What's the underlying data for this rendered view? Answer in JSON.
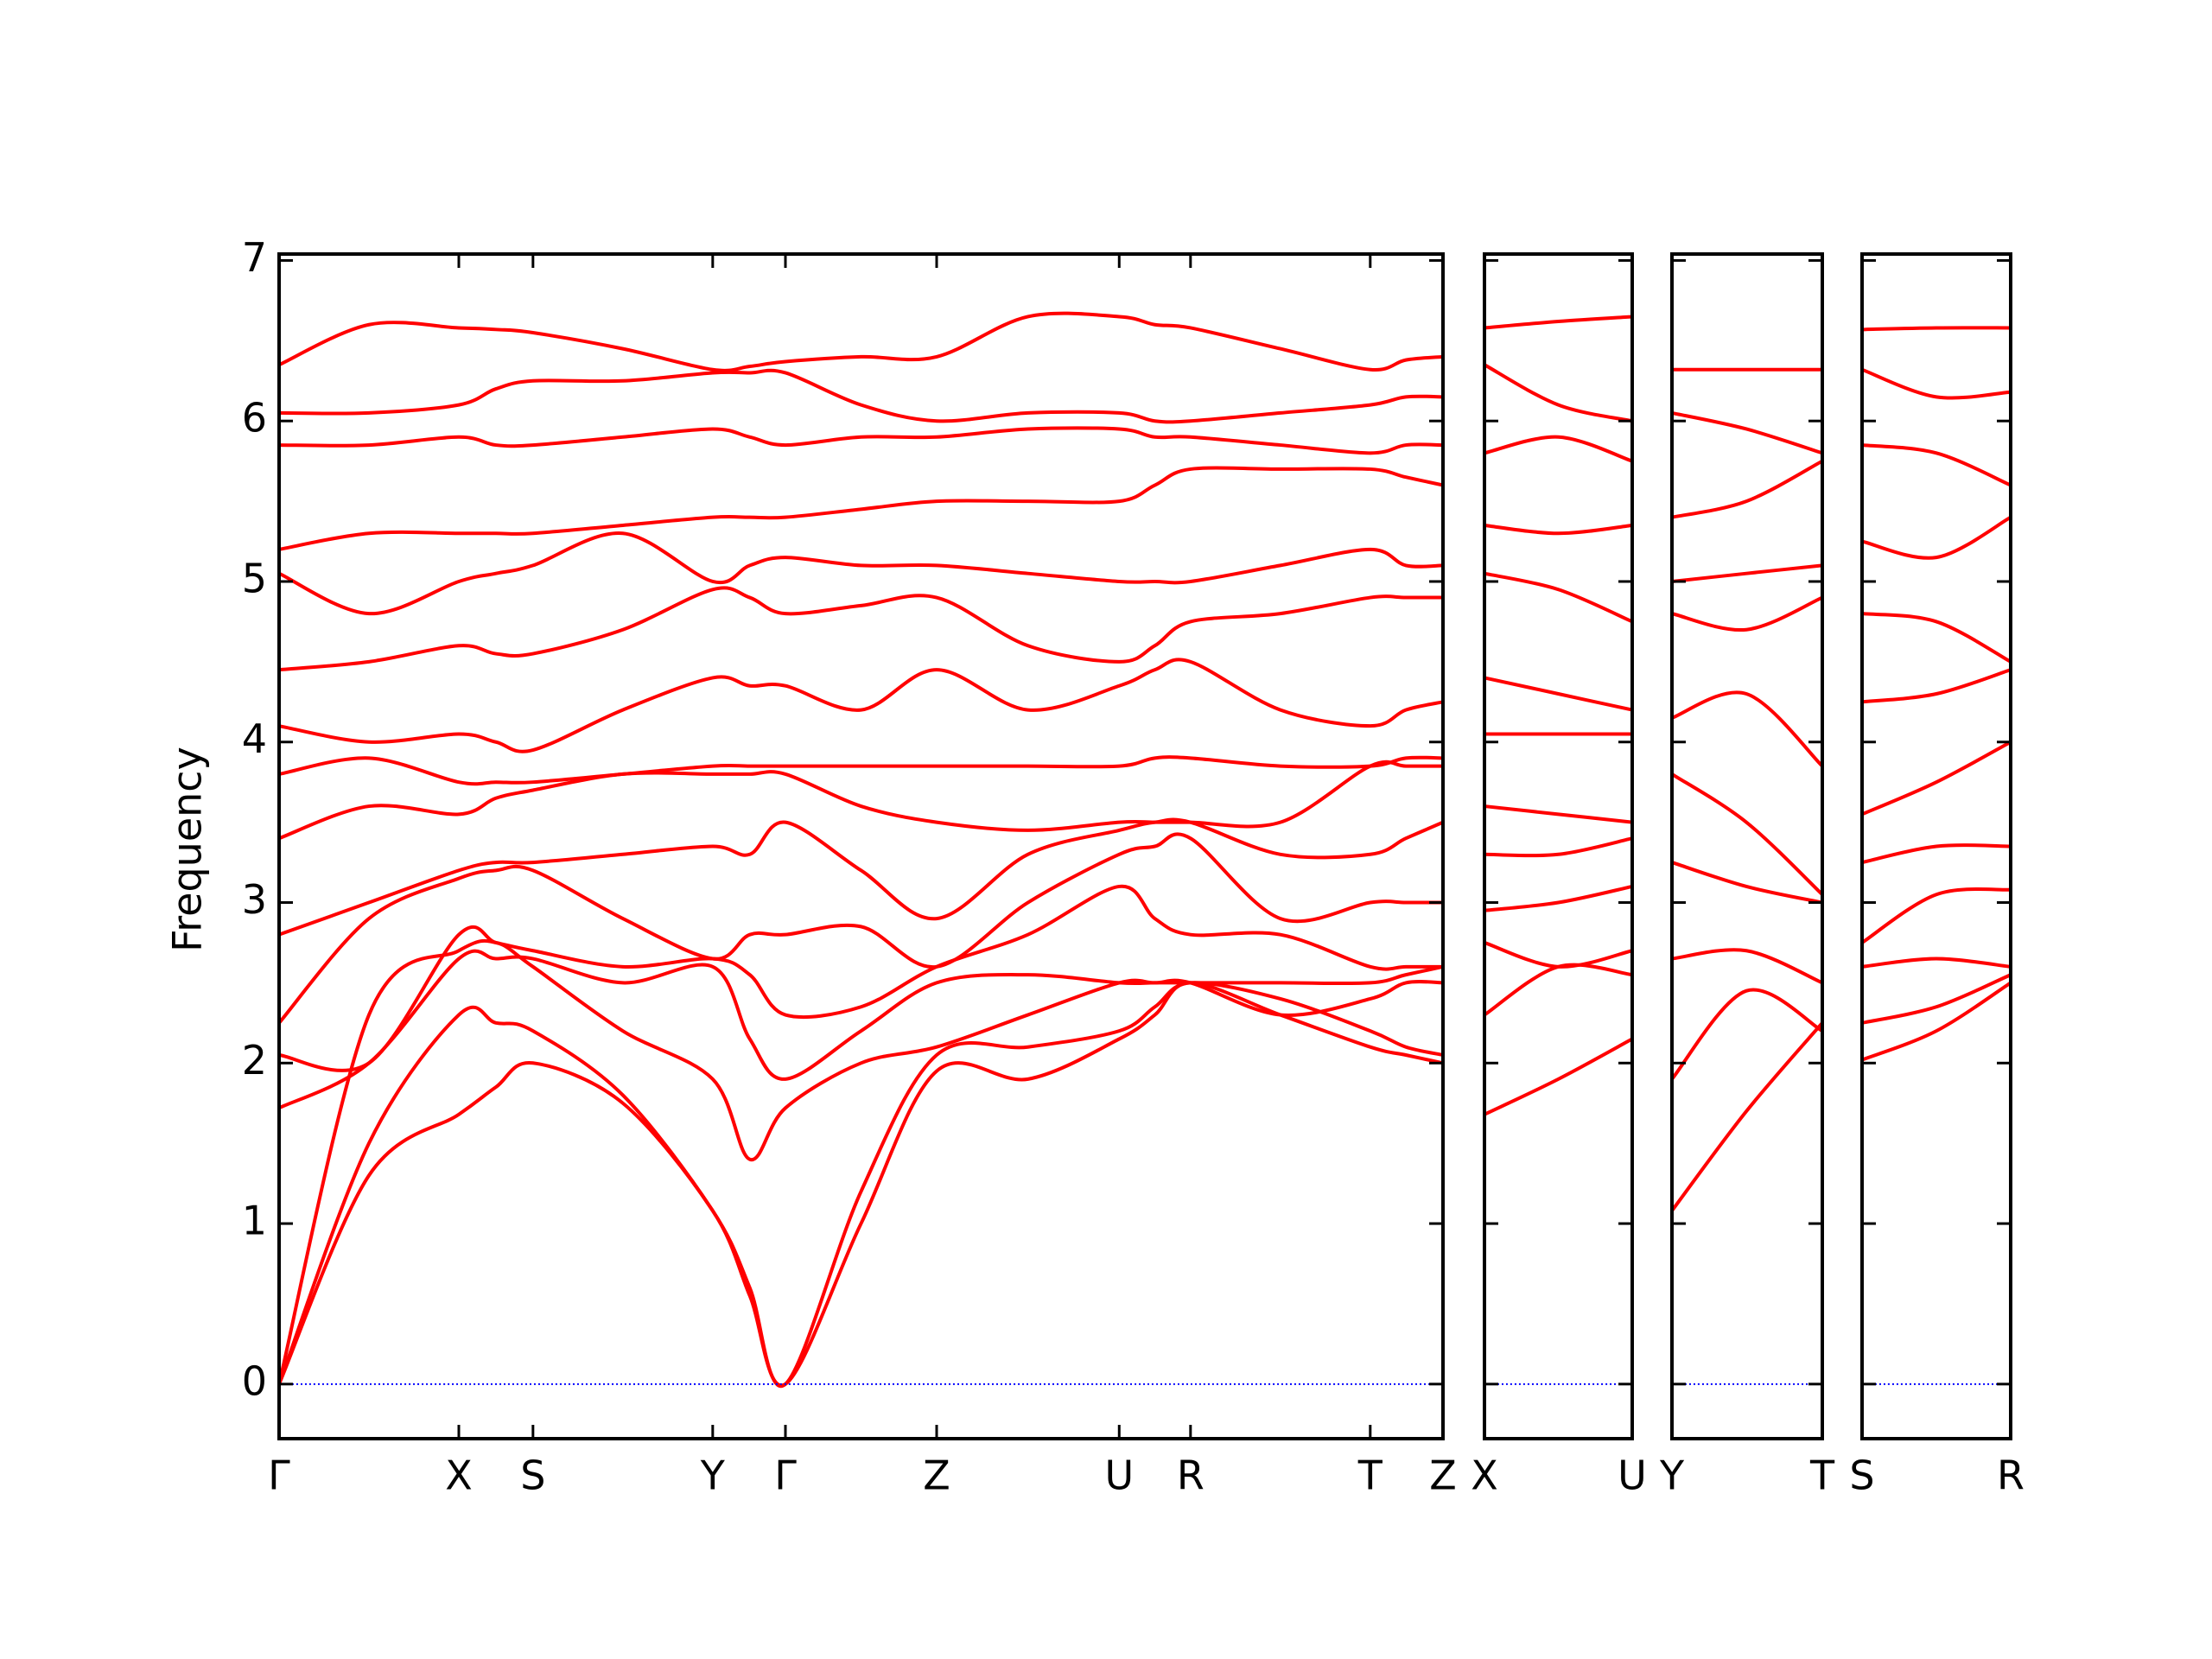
{
  "chart_data": [
    {
      "type": "line",
      "ylabel": "Frequency",
      "x": [
        0,
        0.63,
        1.26,
        1.52,
        1.78,
        2.41,
        3.04,
        3.3,
        3.55,
        4.08,
        4.61,
        5.25,
        5.89,
        6.14,
        6.39,
        7.02,
        7.65,
        7.9,
        8.16
      ],
      "xlim": [
        0,
        8.16
      ],
      "xticks": [
        {
          "value": 0,
          "label": "Γ"
        },
        {
          "value": 1.26,
          "label": "X"
        },
        {
          "value": 1.78,
          "label": "S"
        },
        {
          "value": 3.04,
          "label": "Y"
        },
        {
          "value": 3.55,
          "label": "Γ"
        },
        {
          "value": 4.61,
          "label": "Z"
        },
        {
          "value": 5.89,
          "label": "U"
        },
        {
          "value": 6.39,
          "label": "R"
        },
        {
          "value": 7.65,
          "label": "T"
        },
        {
          "value": 8.16,
          "label": "Z"
        }
      ],
      "ylim": [
        -0.34,
        7.04
      ],
      "yticks": [
        0,
        1,
        2,
        3,
        4,
        5,
        6,
        7
      ],
      "ytick_labels": true,
      "series": [
        {
          "color": "#ff0000",
          "values": [
            0,
            1.3,
            1.68,
            1.85,
            2.0,
            1.75,
            1.08,
            0.55,
            0,
            1.0,
            1.95,
            1.9,
            2.15,
            2.3,
            2.5,
            2.3,
            2.1,
            2.05,
            2.0
          ]
        },
        {
          "color": "#ff0000",
          "values": [
            0,
            1.5,
            2.3,
            2.25,
            2.2,
            1.8,
            1.08,
            0.6,
            0,
            1.2,
            2.05,
            2.1,
            2.2,
            2.35,
            2.5,
            2.4,
            2.2,
            2.1,
            2.05
          ]
        },
        {
          "color": "#ff0000",
          "values": [
            0,
            2.3,
            2.7,
            2.75,
            2.6,
            2.2,
            1.9,
            1.4,
            1.72,
            2.0,
            2.1,
            2.3,
            2.5,
            2.5,
            2.5,
            2.3,
            2.4,
            2.5,
            2.5
          ]
        },
        {
          "color": "#ff0000",
          "values": [
            1.72,
            2.0,
            2.65,
            2.65,
            2.65,
            2.5,
            2.6,
            2.15,
            1.9,
            2.2,
            2.5,
            2.55,
            2.5,
            2.5,
            2.5,
            2.5,
            2.5,
            2.55,
            2.6
          ]
        },
        {
          "color": "#ff0000",
          "values": [
            2.05,
            2.0,
            2.8,
            2.75,
            2.7,
            2.6,
            2.65,
            2.55,
            2.3,
            2.35,
            2.6,
            2.8,
            3.1,
            2.9,
            2.8,
            2.8,
            2.6,
            2.6,
            2.6
          ]
        },
        {
          "color": "#ff0000",
          "values": [
            2.25,
            2.9,
            3.15,
            3.2,
            3.2,
            2.9,
            2.65,
            2.8,
            2.8,
            2.85,
            2.6,
            3.0,
            3.3,
            3.35,
            3.4,
            2.9,
            3.0,
            3.0,
            3.0
          ]
        },
        {
          "color": "#ff0000",
          "values": [
            2.8,
            3.0,
            3.2,
            3.25,
            3.25,
            3.3,
            3.35,
            3.3,
            3.5,
            3.2,
            2.9,
            3.3,
            3.45,
            3.5,
            3.5,
            3.3,
            3.3,
            3.4,
            3.5
          ]
        },
        {
          "color": "#ff0000",
          "values": [
            3.4,
            3.6,
            3.55,
            3.65,
            3.7,
            3.8,
            3.8,
            3.8,
            3.8,
            3.6,
            3.5,
            3.45,
            3.5,
            3.5,
            3.5,
            3.5,
            3.85,
            3.85,
            3.85
          ]
        },
        {
          "color": "#ff0000",
          "values": [
            3.8,
            3.9,
            3.75,
            3.75,
            3.75,
            3.8,
            3.85,
            3.85,
            3.85,
            3.85,
            3.85,
            3.85,
            3.85,
            3.9,
            3.9,
            3.85,
            3.85,
            3.9,
            3.9
          ]
        },
        {
          "color": "#ff0000",
          "values": [
            4.1,
            4.0,
            4.05,
            4.0,
            3.95,
            4.2,
            4.4,
            4.35,
            4.35,
            4.2,
            4.45,
            4.2,
            4.35,
            4.45,
            4.5,
            4.2,
            4.1,
            4.2,
            4.25
          ]
        },
        {
          "color": "#ff0000",
          "values": [
            4.45,
            4.5,
            4.6,
            4.55,
            4.55,
            4.7,
            4.95,
            4.9,
            4.8,
            4.85,
            4.9,
            4.6,
            4.5,
            4.6,
            4.75,
            4.8,
            4.9,
            4.9,
            4.9
          ]
        },
        {
          "color": "#ff0000",
          "values": [
            5.05,
            4.8,
            5.0,
            5.05,
            5.1,
            5.3,
            5.0,
            5.1,
            5.15,
            5.1,
            5.1,
            5.05,
            5.0,
            5.0,
            5.0,
            5.1,
            5.2,
            5.1,
            5.1
          ]
        },
        {
          "color": "#ff0000",
          "values": [
            5.2,
            5.3,
            5.3,
            5.3,
            5.3,
            5.35,
            5.4,
            5.4,
            5.4,
            5.45,
            5.5,
            5.5,
            5.5,
            5.6,
            5.7,
            5.7,
            5.7,
            5.65,
            5.6
          ]
        },
        {
          "color": "#ff0000",
          "values": [
            5.85,
            5.85,
            5.9,
            5.85,
            5.85,
            5.9,
            5.95,
            5.9,
            5.85,
            5.9,
            5.9,
            5.95,
            5.95,
            5.9,
            5.9,
            5.85,
            5.8,
            5.85,
            5.85
          ]
        },
        {
          "color": "#ff0000",
          "values": [
            6.05,
            6.05,
            6.1,
            6.2,
            6.25,
            6.25,
            6.3,
            6.3,
            6.3,
            6.1,
            6.0,
            6.05,
            6.05,
            6.0,
            6.0,
            6.05,
            6.1,
            6.15,
            6.15
          ]
        },
        {
          "color": "#ff0000",
          "values": [
            6.35,
            6.6,
            6.58,
            6.57,
            6.55,
            6.45,
            6.32,
            6.34,
            6.37,
            6.4,
            6.4,
            6.65,
            6.65,
            6.6,
            6.58,
            6.45,
            6.32,
            6.38,
            6.4
          ]
        },
        {
          "color": "#0000ff",
          "style": "dotted",
          "values": [
            0,
            0,
            0,
            0,
            0,
            0,
            0,
            0,
            0,
            0,
            0,
            0,
            0,
            0,
            0,
            0,
            0,
            0,
            0
          ]
        }
      ]
    },
    {
      "type": "line",
      "x": [
        0,
        0.52,
        1.04
      ],
      "xlim": [
        0,
        1.04
      ],
      "xticks": [
        {
          "value": 0,
          "label": "X"
        },
        {
          "value": 1.04,
          "label": "U"
        }
      ],
      "ylim": [
        -0.34,
        7.04
      ],
      "yticks": [
        0,
        1,
        2,
        3,
        4,
        5,
        6,
        7
      ],
      "ytick_labels": false,
      "series": [
        {
          "color": "#ff0000",
          "values": [
            1.68,
            1.9,
            2.15
          ]
        },
        {
          "color": "#ff0000",
          "values": [
            2.3,
            2.6,
            2.55
          ]
        },
        {
          "color": "#ff0000",
          "values": [
            2.75,
            2.6,
            2.7
          ]
        },
        {
          "color": "#ff0000",
          "values": [
            2.95,
            3.0,
            3.1
          ]
        },
        {
          "color": "#ff0000",
          "values": [
            3.3,
            3.3,
            3.4
          ]
        },
        {
          "color": "#ff0000",
          "values": [
            3.6,
            3.55,
            3.5
          ]
        },
        {
          "color": "#ff0000",
          "values": [
            4.05,
            4.05,
            4.05
          ]
        },
        {
          "color": "#ff0000",
          "values": [
            4.4,
            4.3,
            4.2
          ]
        },
        {
          "color": "#ff0000",
          "values": [
            5.05,
            4.95,
            4.75
          ]
        },
        {
          "color": "#ff0000",
          "values": [
            5.35,
            5.3,
            5.35
          ]
        },
        {
          "color": "#ff0000",
          "values": [
            5.8,
            5.9,
            5.75
          ]
        },
        {
          "color": "#ff0000",
          "values": [
            6.35,
            6.1,
            6.0
          ]
        },
        {
          "color": "#ff0000",
          "values": [
            6.58,
            6.62,
            6.65
          ]
        },
        {
          "color": "#0000ff",
          "style": "dotted",
          "values": [
            0,
            0,
            0
          ]
        }
      ]
    },
    {
      "type": "line",
      "x": [
        0,
        0.52,
        1.05
      ],
      "xlim": [
        0,
        1.05
      ],
      "xticks": [
        {
          "value": 0,
          "label": "Y"
        },
        {
          "value": 1.05,
          "label": "T"
        }
      ],
      "ylim": [
        -0.34,
        7.04
      ],
      "yticks": [
        0,
        1,
        2,
        3,
        4,
        5,
        6,
        7
      ],
      "ytick_labels": false,
      "series": [
        {
          "color": "#ff0000",
          "values": [
            1.08,
            1.7,
            2.25
          ]
        },
        {
          "color": "#ff0000",
          "values": [
            1.9,
            2.45,
            2.2
          ]
        },
        {
          "color": "#ff0000",
          "values": [
            2.65,
            2.7,
            2.5
          ]
        },
        {
          "color": "#ff0000",
          "values": [
            3.25,
            3.1,
            3.0
          ]
        },
        {
          "color": "#ff0000",
          "values": [
            3.8,
            3.5,
            3.05
          ]
        },
        {
          "color": "#ff0000",
          "values": [
            4.15,
            4.3,
            3.85
          ]
        },
        {
          "color": "#ff0000",
          "values": [
            4.8,
            4.7,
            4.9
          ]
        },
        {
          "color": "#ff0000",
          "values": [
            5.0,
            5.05,
            5.1
          ]
        },
        {
          "color": "#ff0000",
          "values": [
            5.4,
            5.5,
            5.75
          ]
        },
        {
          "color": "#ff0000",
          "values": [
            6.05,
            5.95,
            5.8
          ]
        },
        {
          "color": "#ff0000",
          "values": [
            6.32,
            6.32,
            6.32
          ]
        },
        {
          "color": "#0000ff",
          "style": "dotted",
          "values": [
            0,
            0,
            0
          ]
        }
      ]
    },
    {
      "type": "line",
      "x": [
        0,
        0.52,
        1.04
      ],
      "xlim": [
        0,
        1.04
      ],
      "xticks": [
        {
          "value": 0,
          "label": "S"
        },
        {
          "value": 1.04,
          "label": "R"
        }
      ],
      "ylim": [
        -0.34,
        7.04
      ],
      "yticks": [
        0,
        1,
        2,
        3,
        4,
        5,
        6,
        7
      ],
      "ytick_labels": false,
      "series": [
        {
          "color": "#ff0000",
          "values": [
            2.02,
            2.2,
            2.5
          ]
        },
        {
          "color": "#ff0000",
          "values": [
            2.25,
            2.35,
            2.55
          ]
        },
        {
          "color": "#ff0000",
          "values": [
            2.6,
            2.65,
            2.6
          ]
        },
        {
          "color": "#ff0000",
          "values": [
            2.75,
            3.05,
            3.08
          ]
        },
        {
          "color": "#ff0000",
          "values": [
            3.25,
            3.35,
            3.35
          ]
        },
        {
          "color": "#ff0000",
          "values": [
            3.55,
            3.75,
            4.0
          ]
        },
        {
          "color": "#ff0000",
          "values": [
            4.25,
            4.3,
            4.45
          ]
        },
        {
          "color": "#ff0000",
          "values": [
            4.8,
            4.75,
            4.5
          ]
        },
        {
          "color": "#ff0000",
          "values": [
            5.25,
            5.15,
            5.4
          ]
        },
        {
          "color": "#ff0000",
          "values": [
            5.85,
            5.8,
            5.6
          ]
        },
        {
          "color": "#ff0000",
          "values": [
            6.32,
            6.15,
            6.18
          ]
        },
        {
          "color": "#ff0000",
          "values": [
            6.57,
            6.58,
            6.58
          ]
        },
        {
          "color": "#0000ff",
          "style": "dotted",
          "values": [
            0,
            0,
            0
          ]
        }
      ]
    }
  ]
}
